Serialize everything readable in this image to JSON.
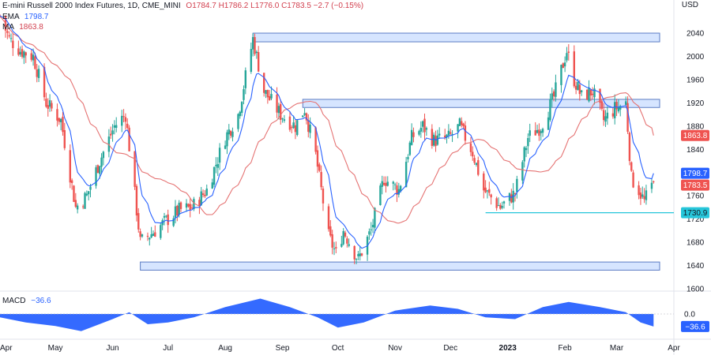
{
  "header": {
    "symbol": "E-mini Russell 2000 Index Futures, 1D, CME_MINI",
    "ohlc": "O1784.7  H1786.2  L1776.0  C1783.5  −2.7 (−0.15%)",
    "ema_label": "EMA",
    "ema_value": "1798.7",
    "ma_label": "MA",
    "ma_value": "1863.8",
    "currency": "USD"
  },
  "macd_legend": {
    "label": "MACD",
    "value": "−36.6"
  },
  "colors": {
    "up": "#26a69a",
    "down": "#ef5350",
    "ema": "#2962ff",
    "ma": "#e57373",
    "zone_fill": "#cfe0ff",
    "zone_stroke": "#5b7cc4",
    "support_line": "#26c6da",
    "macd_fill": "#2962ff"
  },
  "chart_data": {
    "type": "candlestick",
    "title": "E-mini Russell 2000 Index Futures, 1D, CME_MINI",
    "y_unit": "USD",
    "ylim": [
      1600,
      2060
    ],
    "y_ticks": [
      1600,
      1640,
      1680,
      1720,
      1760,
      1800,
      1840,
      1880,
      1920,
      1960,
      2000,
      2040
    ],
    "x_tick_labels": [
      "Apr",
      "May",
      "Jun",
      "Jul",
      "Aug",
      "Sep",
      "Oct",
      "Nov",
      "Dec",
      "2023",
      "Feb",
      "Mar",
      "Apr"
    ],
    "close_path": [
      [
        "2022-04-01",
        2070
      ],
      [
        "2022-04-06",
        2030
      ],
      [
        "2022-04-12",
        2010
      ],
      [
        "2022-04-19",
        2000
      ],
      [
        "2022-04-26",
        1920
      ],
      [
        "2022-05-04",
        1890
      ],
      [
        "2022-05-12",
        1740
      ],
      [
        "2022-05-18",
        1760
      ],
      [
        "2022-05-25",
        1820
      ],
      [
        "2022-06-02",
        1880
      ],
      [
        "2022-06-08",
        1900
      ],
      [
        "2022-06-16",
        1680
      ],
      [
        "2022-06-24",
        1700
      ],
      [
        "2022-07-01",
        1720
      ],
      [
        "2022-07-07",
        1735
      ],
      [
        "2022-07-14",
        1740
      ],
      [
        "2022-07-22",
        1770
      ],
      [
        "2022-08-01",
        1860
      ],
      [
        "2022-08-08",
        1900
      ],
      [
        "2022-08-16",
        2030
      ],
      [
        "2022-08-22",
        1940
      ],
      [
        "2022-08-31",
        1900
      ],
      [
        "2022-09-08",
        1880
      ],
      [
        "2022-09-13",
        1910
      ],
      [
        "2022-09-19",
        1830
      ],
      [
        "2022-09-26",
        1690
      ],
      [
        "2022-09-30",
        1660
      ],
      [
        "2022-10-04",
        1700
      ],
      [
        "2022-10-12",
        1650
      ],
      [
        "2022-10-19",
        1700
      ],
      [
        "2022-10-26",
        1790
      ],
      [
        "2022-11-03",
        1770
      ],
      [
        "2022-11-10",
        1860
      ],
      [
        "2022-11-16",
        1880
      ],
      [
        "2022-11-22",
        1855
      ],
      [
        "2022-11-30",
        1860
      ],
      [
        "2022-12-06",
        1880
      ],
      [
        "2022-12-13",
        1835
      ],
      [
        "2022-12-19",
        1770
      ],
      [
        "2022-12-28",
        1740
      ],
      [
        "2023-01-05",
        1765
      ],
      [
        "2023-01-12",
        1860
      ],
      [
        "2023-01-19",
        1880
      ],
      [
        "2023-01-26",
        1930
      ],
      [
        "2023-02-02",
        2010
      ],
      [
        "2023-02-06",
        1960
      ],
      [
        "2023-02-10",
        1930
      ],
      [
        "2023-02-16",
        1940
      ],
      [
        "2023-02-22",
        1890
      ],
      [
        "2023-02-28",
        1910
      ],
      [
        "2023-03-06",
        1920
      ],
      [
        "2023-03-09",
        1790
      ],
      [
        "2023-03-13",
        1770
      ],
      [
        "2023-03-16",
        1750
      ],
      [
        "2023-03-21",
        1783.5
      ]
    ],
    "series": [
      {
        "name": "EMA",
        "last_value": 1798.7
      },
      {
        "name": "MA",
        "last_value": 1863.8
      }
    ],
    "zones": [
      {
        "from": "2022-08-16",
        "to": "2023-03-31",
        "low": 2025,
        "high": 2040
      },
      {
        "from": "2022-09-12",
        "to": "2023-03-31",
        "low": 1912,
        "high": 1926
      },
      {
        "from": "2022-06-16",
        "to": "2023-03-31",
        "low": 1632,
        "high": 1646
      }
    ],
    "support_line": {
      "from": "2022-12-20",
      "to": "2023-03-31",
      "value": 1730.9
    },
    "price_badges": [
      {
        "value": 1863.8,
        "label": "1863.8",
        "kind": "ma"
      },
      {
        "value": 1798.7,
        "label": "1798.7",
        "kind": "ema"
      },
      {
        "value": 1783.5,
        "label": "1783.5",
        "kind": "last"
      },
      {
        "value": 1730.9,
        "label": "1730.9",
        "kind": "support"
      }
    ],
    "macd": {
      "ylim": [
        -60,
        60
      ],
      "y_ticks": [
        0
      ],
      "y_tick_labels": [
        "0.0"
      ],
      "last_value": -36.6,
      "last_label": "−36.6",
      "path": [
        [
          "2022-04-01",
          -10
        ],
        [
          "2022-04-15",
          -25
        ],
        [
          "2022-05-01",
          -35
        ],
        [
          "2022-05-15",
          -50
        ],
        [
          "2022-06-01",
          -15
        ],
        [
          "2022-06-10",
          5
        ],
        [
          "2022-06-20",
          -30
        ],
        [
          "2022-07-01",
          -25
        ],
        [
          "2022-07-15",
          -10
        ],
        [
          "2022-08-01",
          20
        ],
        [
          "2022-08-20",
          45
        ],
        [
          "2022-09-05",
          20
        ],
        [
          "2022-09-20",
          -10
        ],
        [
          "2022-10-01",
          -40
        ],
        [
          "2022-10-15",
          -25
        ],
        [
          "2022-11-01",
          10
        ],
        [
          "2022-11-20",
          25
        ],
        [
          "2022-12-05",
          15
        ],
        [
          "2022-12-20",
          -10
        ],
        [
          "2023-01-05",
          -15
        ],
        [
          "2023-01-20",
          20
        ],
        [
          "2023-02-03",
          35
        ],
        [
          "2023-02-20",
          20
        ],
        [
          "2023-03-06",
          5
        ],
        [
          "2023-03-14",
          -25
        ],
        [
          "2023-03-21",
          -36.6
        ]
      ]
    }
  }
}
